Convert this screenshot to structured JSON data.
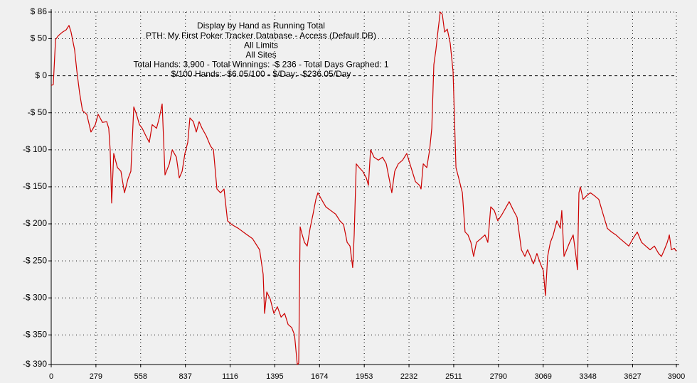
{
  "chart_data": {
    "type": "line",
    "title_lines": [
      "Display by Hand as Running Total",
      "PTH: My First Poker Tracker Database - Access (Default DB)",
      "All Limits",
      "All Sites",
      "Total Hands: 3,900 - Total Winnings: -$ 236 - Total Days Graphed: 1",
      "$/100 Hands: -$6.05/100 - $/Day: -$236.05/Day"
    ],
    "x": [
      0,
      13,
      27,
      44,
      71,
      93,
      111,
      124,
      146,
      160,
      177,
      195,
      222,
      248,
      275,
      293,
      320,
      346,
      359,
      368,
      377,
      390,
      413,
      435,
      457,
      479,
      497,
      515,
      532,
      550,
      568,
      590,
      612,
      630,
      657,
      674,
      692,
      710,
      737,
      755,
      781,
      799,
      817,
      834,
      852,
      865,
      887,
      905,
      923,
      941,
      967,
      994,
      1012,
      1034,
      1056,
      1078,
      1100,
      1127,
      1167,
      1211,
      1256,
      1300,
      1322,
      1331,
      1345,
      1367,
      1389,
      1411,
      1434,
      1456,
      1478,
      1500,
      1518,
      1535,
      1544,
      1553,
      1566,
      1580,
      1597,
      1615,
      1633,
      1651,
      1664,
      1686,
      1713,
      1744,
      1775,
      1801,
      1824,
      1846,
      1864,
      1881,
      1890,
      1903,
      1921,
      1943,
      1966,
      1979,
      1992,
      2014,
      2041,
      2067,
      2090,
      2112,
      2125,
      2143,
      2165,
      2192,
      2218,
      2245,
      2272,
      2298,
      2307,
      2321,
      2343,
      2361,
      2374,
      2387,
      2400,
      2414,
      2427,
      2440,
      2454,
      2471,
      2489,
      2507,
      2525,
      2542,
      2565,
      2582,
      2600,
      2618,
      2635,
      2653,
      2680,
      2706,
      2724,
      2742,
      2764,
      2786,
      2813,
      2839,
      2857,
      2884,
      2906,
      2933,
      2955,
      2972,
      2990,
      3008,
      3030,
      3052,
      3070,
      3083,
      3097,
      3114,
      3132,
      3154,
      3176,
      3185,
      3199,
      3216,
      3234,
      3256,
      3274,
      3283,
      3292,
      3301,
      3318,
      3340,
      3363,
      3389,
      3416,
      3443,
      3469,
      3496,
      3523,
      3549,
      3576,
      3603,
      3629,
      3656,
      3683,
      3709,
      3736,
      3763,
      3789,
      3807,
      3825,
      3843,
      3856,
      3869,
      3887,
      3900
    ],
    "series": [
      {
        "color": "#cc0000",
        "values": [
          -13,
          -12,
          49,
          54,
          59,
          62,
          68,
          59,
          35,
          6,
          -23,
          -47,
          -52,
          -76,
          -66,
          -52,
          -63,
          -62,
          -71,
          -100,
          -172,
          -105,
          -124,
          -129,
          -158,
          -139,
          -129,
          -42,
          -52,
          -66,
          -71,
          -81,
          -90,
          -66,
          -71,
          -57,
          -38,
          -134,
          -119,
          -100,
          -110,
          -138,
          -129,
          -105,
          -90,
          -57,
          -62,
          -76,
          -62,
          -71,
          -81,
          -95,
          -100,
          -153,
          -158,
          -153,
          -196,
          -201,
          -206,
          -213,
          -220,
          -235,
          -268,
          -321,
          -292,
          -302,
          -321,
          -312,
          -326,
          -321,
          -336,
          -340,
          -350,
          -390,
          -388,
          -204,
          -215,
          -225,
          -230,
          -206,
          -187,
          -167,
          -158,
          -167,
          -177,
          -182,
          -187,
          -196,
          -201,
          -225,
          -230,
          -259,
          -215,
          -119,
          -124,
          -129,
          -138,
          -148,
          -100,
          -110,
          -114,
          -110,
          -119,
          -143,
          -158,
          -129,
          -119,
          -114,
          -105,
          -124,
          -143,
          -148,
          -153,
          -119,
          -124,
          -100,
          -71,
          15,
          35,
          63,
          86,
          83,
          59,
          63,
          44,
          6,
          -124,
          -138,
          -158,
          -211,
          -215,
          -225,
          -244,
          -225,
          -220,
          -215,
          -225,
          -177,
          -182,
          -196,
          -187,
          -177,
          -170,
          -182,
          -191,
          -235,
          -244,
          -235,
          -244,
          -254,
          -240,
          -254,
          -263,
          -297,
          -244,
          -225,
          -215,
          -196,
          -206,
          -182,
          -244,
          -235,
          -225,
          -215,
          -244,
          -262,
          -158,
          -150,
          -167,
          -162,
          -158,
          -162,
          -167,
          -187,
          -206,
          -211,
          -215,
          -220,
          -225,
          -230,
          -220,
          -211,
          -225,
          -230,
          -235,
          -230,
          -240,
          -244,
          -235,
          -225,
          -215,
          -235,
          -233,
          -237
        ]
      }
    ],
    "xlim": [
      0,
      3900
    ],
    "xticks": [
      0,
      279,
      558,
      837,
      1116,
      1395,
      1674,
      1953,
      2232,
      2511,
      2790,
      3069,
      3348,
      3627,
      3900
    ],
    "ylim": [
      -390,
      86
    ],
    "yticks": [
      {
        "value": 86,
        "label": "$ 86"
      },
      {
        "value": 50,
        "label": "$ 50"
      },
      {
        "value": 0,
        "label": "$ 0"
      },
      {
        "value": -50,
        "label": "-$ 50"
      },
      {
        "value": -100,
        "label": "-$ 100"
      },
      {
        "value": -150,
        "label": "-$ 150"
      },
      {
        "value": -200,
        "label": "-$ 200"
      },
      {
        "value": -250,
        "label": "-$ 250"
      },
      {
        "value": -300,
        "label": "-$ 300"
      },
      {
        "value": -350,
        "label": "-$ 350"
      },
      {
        "value": -390,
        "label": "-$ 390"
      }
    ],
    "grid": true
  }
}
